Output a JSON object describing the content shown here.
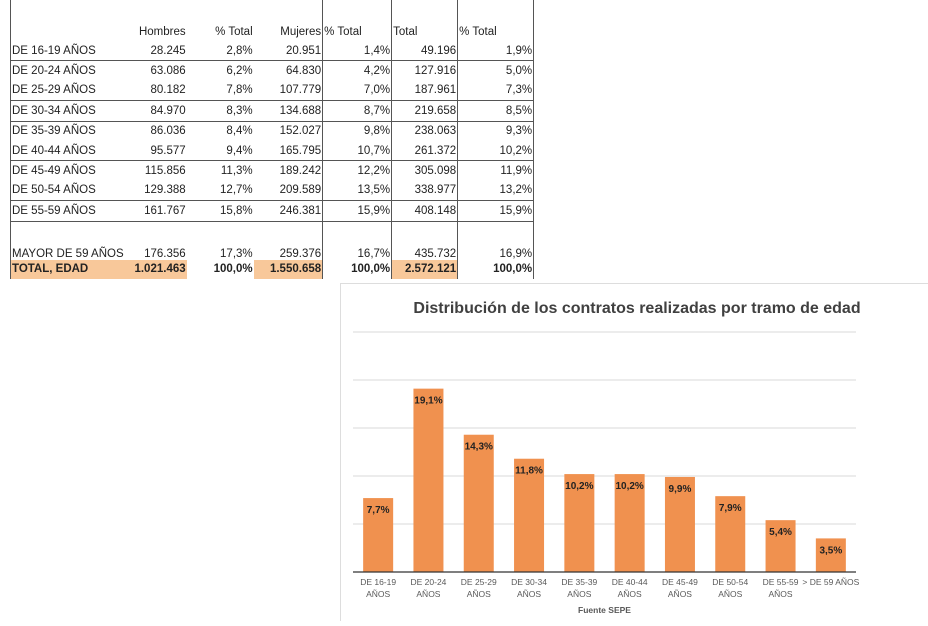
{
  "table": {
    "headers": [
      "",
      "Hombres",
      "% Total",
      "Mujeres",
      "% Total",
      "Total",
      "% Total"
    ],
    "rows": [
      [
        "DE 16-19 AÑOS",
        "28.245",
        "2,8%",
        "20.951",
        "1,4%",
        "49.196",
        "1,9%"
      ],
      [
        "DE 20-24 AÑOS",
        "63.086",
        "6,2%",
        "64.830",
        "4,2%",
        "127.916",
        "5,0%"
      ],
      [
        "DE 25-29 AÑOS",
        "80.182",
        "7,8%",
        "107.779",
        "7,0%",
        "187.961",
        "7,3%"
      ],
      [
        "DE 30-34 AÑOS",
        "84.970",
        "8,3%",
        "134.688",
        "8,7%",
        "219.658",
        "8,5%"
      ],
      [
        "DE 35-39 AÑOS",
        "86.036",
        "8,4%",
        "152.027",
        "9,8%",
        "238.063",
        "9,3%"
      ],
      [
        "DE 40-44 AÑOS",
        "95.577",
        "9,4%",
        "165.795",
        "10,7%",
        "261.372",
        "10,2%"
      ],
      [
        "DE 45-49 AÑOS",
        "115.856",
        "11,3%",
        "189.242",
        "12,2%",
        "305.098",
        "11,9%"
      ],
      [
        "DE 50-54 AÑOS",
        "129.388",
        "12,7%",
        "209.589",
        "13,5%",
        "338.977",
        "13,2%"
      ],
      [
        "DE 55-59 AÑOS",
        "161.767",
        "15,8%",
        "246.381",
        "15,9%",
        "408.148",
        "15,9%"
      ],
      [
        "MAYOR DE 59 AÑOS",
        "176.356",
        "17,3%",
        "259.376",
        "16,7%",
        "435.732",
        "16,9%"
      ]
    ],
    "total": [
      "TOTAL, EDAD",
      "1.021.463",
      "100,0%",
      "1.550.658",
      "100,0%",
      "2.572.121",
      "100,0%"
    ],
    "highlight_color": "#f8c89a"
  },
  "chart_data": {
    "type": "bar",
    "title": "Distribución de los contratos realizadas por tramo de edad",
    "xlabel": "Fuente SEPE",
    "categories": [
      [
        "DE 16-19",
        "AÑOS"
      ],
      [
        "DE 20-24",
        "AÑOS"
      ],
      [
        "DE 25-29",
        "AÑOS"
      ],
      [
        "DE 30-34",
        "AÑOS"
      ],
      [
        "DE 35-39",
        "AÑOS"
      ],
      [
        "DE 40-44",
        "AÑOS"
      ],
      [
        "DE 45-49",
        "AÑOS"
      ],
      [
        "DE 50-54",
        "AÑOS"
      ],
      [
        "DE 55-59",
        "AÑOS"
      ],
      [
        "> DE 59 AÑOS"
      ]
    ],
    "values": [
      7.7,
      19.1,
      14.3,
      11.8,
      10.2,
      10.2,
      9.9,
      7.9,
      5.4,
      3.5
    ],
    "data_labels": [
      "7,7%",
      "19,1%",
      "14,3%",
      "11,8%",
      "10,2%",
      "10,2%",
      "9,9%",
      "7,9%",
      "5,4%",
      "3,5%"
    ],
    "ylim": [
      0,
      25
    ],
    "grid": true,
    "bar_color": "#f0914f"
  }
}
